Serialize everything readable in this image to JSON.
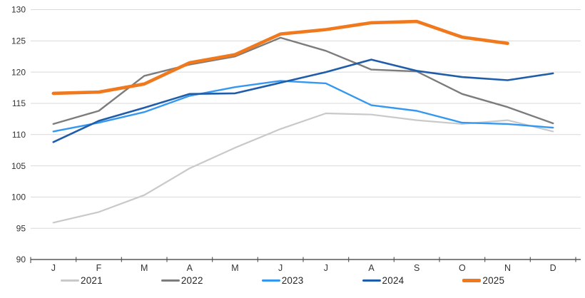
{
  "chart_data": {
    "type": "line",
    "title": "",
    "xlabel": "",
    "ylabel": "",
    "x_labels": [
      "J",
      "F",
      "M",
      "A",
      "M",
      "J",
      "J",
      "A",
      "S",
      "O",
      "N",
      "D"
    ],
    "y_ticks": [
      90,
      95,
      100,
      105,
      110,
      115,
      120,
      125,
      130
    ],
    "ylim": [
      90,
      130
    ],
    "grid": true,
    "legend_position": "bottom",
    "series": [
      {
        "name": "2021",
        "color": "#C9C9C9",
        "width": 2.2,
        "values": [
          95.9,
          97.6,
          100.3,
          104.6,
          107.9,
          110.9,
          113.4,
          113.2,
          112.3,
          111.7,
          112.3,
          110.5
        ]
      },
      {
        "name": "2022",
        "color": "#7C7C7C",
        "width": 2.4,
        "values": [
          111.7,
          113.8,
          119.4,
          121.2,
          122.5,
          125.5,
          123.4,
          120.4,
          120.1,
          116.5,
          114.4,
          111.8
        ]
      },
      {
        "name": "2023",
        "color": "#3598F0",
        "width": 2.4,
        "values": [
          110.5,
          111.9,
          113.6,
          116.2,
          117.6,
          118.6,
          118.2,
          114.7,
          113.8,
          111.9,
          111.7,
          111.1
        ]
      },
      {
        "name": "2024",
        "color": "#1F5CA9",
        "width": 2.6,
        "values": [
          108.8,
          112.2,
          114.3,
          116.5,
          116.6,
          118.3,
          120.0,
          122.0,
          120.2,
          119.2,
          118.7,
          119.8
        ]
      },
      {
        "name": "2025",
        "color": "#F0791E",
        "width": 4.6,
        "values": [
          116.6,
          116.8,
          118.1,
          121.5,
          122.8,
          126.1,
          126.8,
          127.9,
          128.1,
          125.6,
          124.6,
          null
        ]
      }
    ],
    "colors": {
      "grid": "#D9D9D9",
      "axis": "#595959",
      "tick_text": "#333333"
    }
  }
}
